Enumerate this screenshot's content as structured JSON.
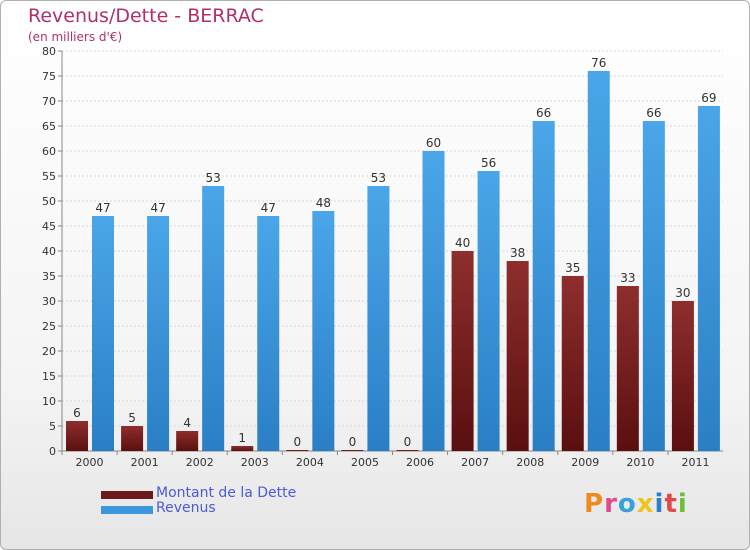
{
  "header": {
    "title": "Revenus/Dette - BERRAC",
    "subtitle": "(en milliers d'€)"
  },
  "legend": [
    {
      "label": "Montant de la Dette",
      "color": "#6b1a1a"
    },
    {
      "label": "Revenus",
      "color": "#3d97dc"
    }
  ],
  "branding": {
    "text": "Proxiti",
    "colors": [
      "#f08a1e",
      "#e04a8a",
      "#3aa0d8",
      "#f0c419",
      "#2c7fd0",
      "#e04a4a",
      "#6cbf3a"
    ]
  },
  "chart_data": {
    "type": "bar",
    "title": "Revenus/Dette - BERRAC",
    "subtitle": "(en milliers d'€)",
    "xlabel": "",
    "ylabel": "",
    "ylim": [
      0,
      80
    ],
    "yticks": [
      0,
      5,
      10,
      15,
      20,
      25,
      30,
      35,
      40,
      45,
      50,
      55,
      60,
      65,
      70,
      75,
      80
    ],
    "grid": true,
    "categories": [
      "2000",
      "2001",
      "2002",
      "2003",
      "2004",
      "2005",
      "2006",
      "2007",
      "2008",
      "2009",
      "2010",
      "2011"
    ],
    "series": [
      {
        "name": "Montant de la Dette",
        "color": "#7a1e1e",
        "values": [
          6,
          5,
          4,
          1,
          0,
          0,
          0,
          40,
          38,
          35,
          33,
          30
        ]
      },
      {
        "name": "Revenus",
        "color": "#3d97dc",
        "values": [
          47,
          47,
          53,
          47,
          48,
          53,
          60,
          56,
          66,
          76,
          66,
          69
        ]
      }
    ]
  }
}
